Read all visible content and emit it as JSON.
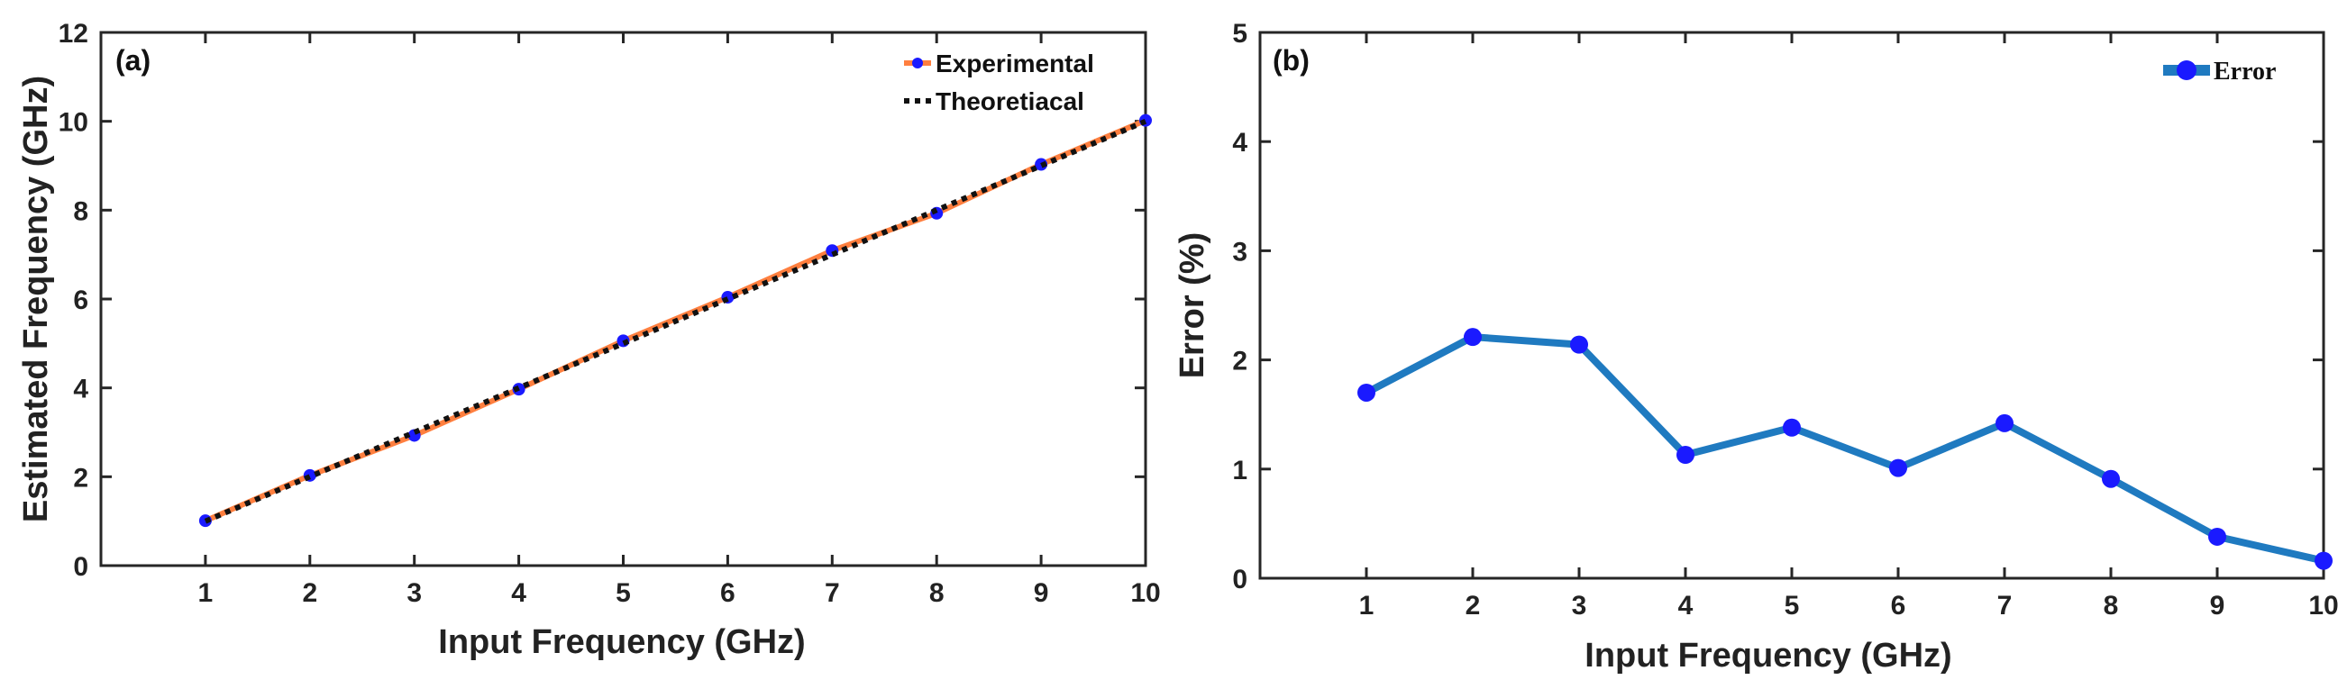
{
  "chart_data": [
    {
      "type": "line",
      "panel_label": "(a)",
      "xlabel": "Input Frequency (GHz)",
      "ylabel": "Estimated Frequency (GHz)",
      "xlim": [
        0,
        10
      ],
      "ylim": [
        0,
        12
      ],
      "x_ticks": [
        1,
        2,
        3,
        4,
        5,
        6,
        7,
        8,
        9,
        10
      ],
      "y_ticks": [
        0,
        2,
        4,
        6,
        8,
        10,
        12
      ],
      "grid": false,
      "legend_position": "top-right",
      "series": [
        {
          "name": "Experimental",
          "line_color": "#ff7f3f",
          "marker_color": "#1a1aff",
          "style": "solid-with-markers",
          "x": [
            1,
            2,
            3,
            4,
            5,
            6,
            7,
            8,
            9,
            10
          ],
          "values": [
            1.01,
            2.03,
            2.93,
            3.97,
            5.06,
            6.04,
            7.09,
            7.93,
            9.03,
            10.02
          ]
        },
        {
          "name": "Theoretiacal",
          "line_color": "#111111",
          "style": "dotted",
          "x": [
            1,
            2,
            3,
            4,
            5,
            6,
            7,
            8,
            9,
            10
          ],
          "values": [
            1,
            2,
            3,
            4,
            5,
            6,
            7,
            8,
            9,
            10
          ]
        }
      ]
    },
    {
      "type": "line",
      "panel_label": "(b)",
      "xlabel": "Input Frequency (GHz)",
      "ylabel": "Error  (%)",
      "xlim": [
        0,
        10
      ],
      "ylim": [
        0,
        5
      ],
      "x_ticks": [
        1,
        2,
        3,
        4,
        5,
        6,
        7,
        8,
        9,
        10
      ],
      "y_ticks": [
        0,
        1,
        2,
        3,
        4,
        5
      ],
      "grid": false,
      "legend_position": "top-right",
      "series": [
        {
          "name": "Error",
          "line_color": "#1f7ac0",
          "marker_color": "#1a1aff",
          "style": "solid-with-markers",
          "x": [
            1,
            2,
            3,
            4,
            5,
            6,
            7,
            8,
            9,
            10
          ],
          "values": [
            1.7,
            2.21,
            2.14,
            1.13,
            1.38,
            1.01,
            1.42,
            0.91,
            0.38,
            0.16
          ]
        }
      ]
    }
  ]
}
